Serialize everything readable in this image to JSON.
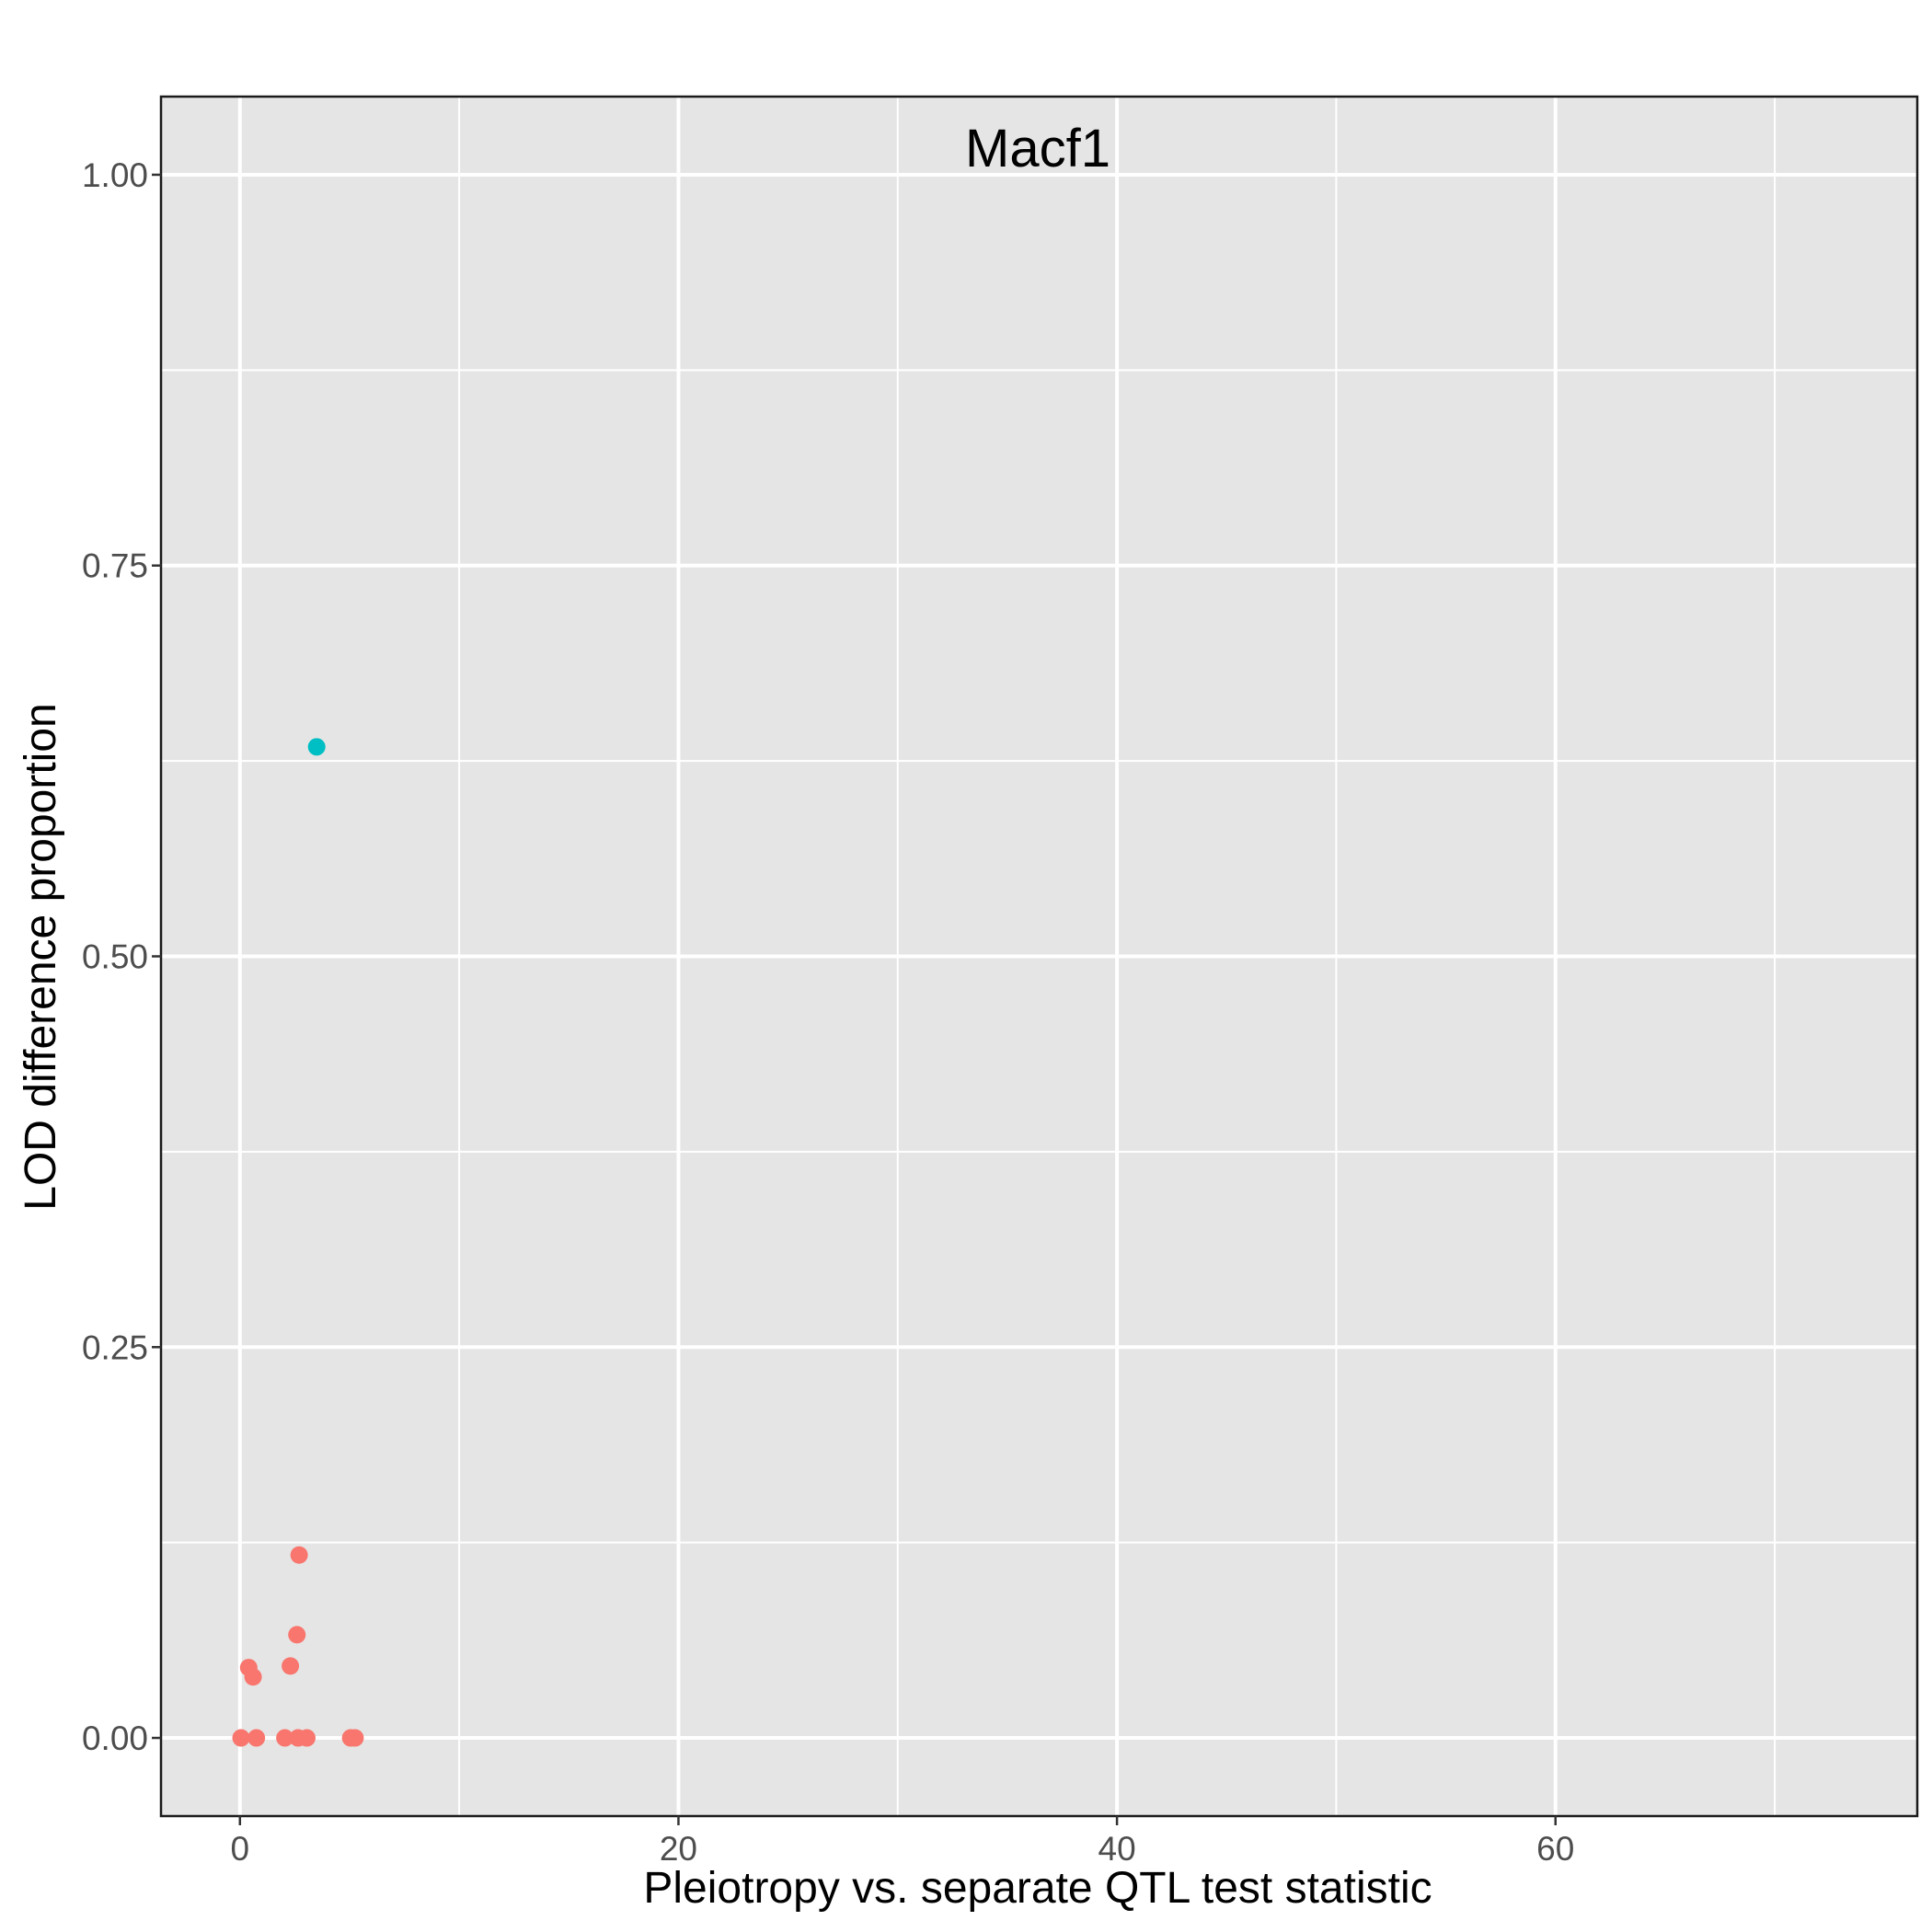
{
  "chart_data": {
    "type": "scatter",
    "title": "Macf1",
    "xlabel": "Pleiotropy vs. separate QTL test statistic",
    "ylabel": "LOD difference proportion",
    "xlim": [
      -3.6,
      76.5
    ],
    "ylim": [
      -0.05,
      1.05
    ],
    "x_major_ticks": [
      0,
      20,
      40,
      60
    ],
    "x_minor_ticks": [
      10,
      30,
      50,
      70
    ],
    "y_major_ticks": [
      0.0,
      0.25,
      0.5,
      0.75,
      1.0
    ],
    "y_minor_ticks": [
      0.125,
      0.375,
      0.625,
      0.875
    ],
    "x_tick_labels": [
      "0",
      "20",
      "40",
      "60"
    ],
    "y_tick_labels": [
      "0.00",
      "0.25",
      "0.50",
      "0.75",
      "1.00"
    ],
    "grid": true,
    "legend": "none",
    "colors": {
      "panel_bg": "#e5e5e5",
      "grid": "#ffffff",
      "group_a": "#F8766D",
      "group_b": "#00BFC4"
    },
    "series": [
      {
        "color": "#F8766D",
        "points": [
          {
            "x": 0.05,
            "y": 0.0
          },
          {
            "x": 0.75,
            "y": 0.0
          },
          {
            "x": 2.05,
            "y": 0.0
          },
          {
            "x": 2.65,
            "y": 0.0
          },
          {
            "x": 3.05,
            "y": 0.0
          },
          {
            "x": 5.05,
            "y": 0.0
          },
          {
            "x": 5.25,
            "y": 0.0
          },
          {
            "x": 0.4,
            "y": 0.045
          },
          {
            "x": 0.6,
            "y": 0.039
          },
          {
            "x": 2.3,
            "y": 0.046
          },
          {
            "x": 2.6,
            "y": 0.066
          },
          {
            "x": 2.7,
            "y": 0.117
          }
        ]
      },
      {
        "color": "#00BFC4",
        "points": [
          {
            "x": 3.5,
            "y": 0.634
          }
        ]
      }
    ]
  }
}
